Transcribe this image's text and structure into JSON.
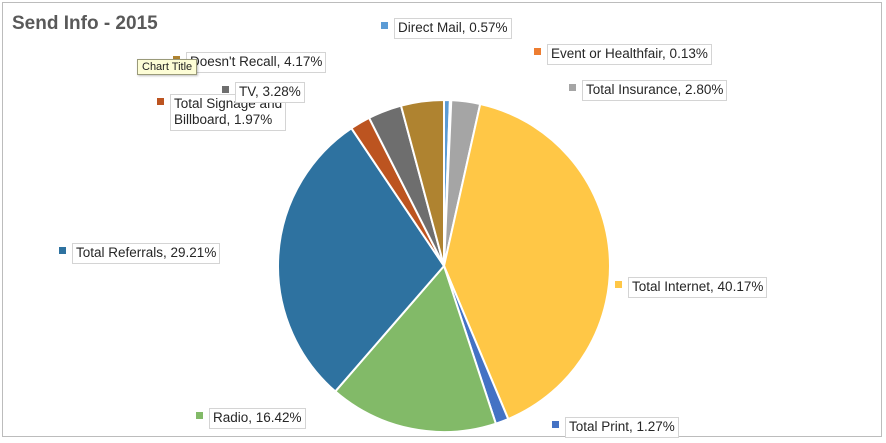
{
  "chart_data": {
    "type": "pie",
    "title": "Send Info - 2015",
    "slices": [
      {
        "label": "Direct Mail",
        "value": 0.57,
        "display": "Direct Mail, 0.57%",
        "color": "#5B9BD5"
      },
      {
        "label": "Event or Healthfair",
        "value": 0.13,
        "display": "Event or Healthfair, 0.13%",
        "color": "#ED7D31"
      },
      {
        "label": "Total Insurance",
        "value": 2.8,
        "display": "Total Insurance, 2.80%",
        "color": "#A5A5A5"
      },
      {
        "label": "Total Internet",
        "value": 40.17,
        "display": "Total Internet, 40.17%",
        "color": "#FFC746"
      },
      {
        "label": "Total Print",
        "value": 1.27,
        "display": "Total Print, 1.27%",
        "color": "#4472C4"
      },
      {
        "label": "Radio",
        "value": 16.42,
        "display": "Radio, 16.42%",
        "color": "#82BA68"
      },
      {
        "label": "Total Referrals",
        "value": 29.21,
        "display": "Total Referrals, 29.21%",
        "color": "#2E72A0"
      },
      {
        "label": "Total Signage and Billboard",
        "value": 1.97,
        "display": "Total Signage and\nBillboard, 1.97%",
        "color": "#BC5420"
      },
      {
        "label": "TV",
        "value": 3.28,
        "display": "TV, 3.28%",
        "color": "#6E6E6E"
      },
      {
        "label": "Doesn't Recall",
        "value": 4.17,
        "display": "Doesn't Recall, 4.17%",
        "color": "#AF8330"
      }
    ]
  },
  "tooltip": {
    "text": "Chart Title"
  }
}
